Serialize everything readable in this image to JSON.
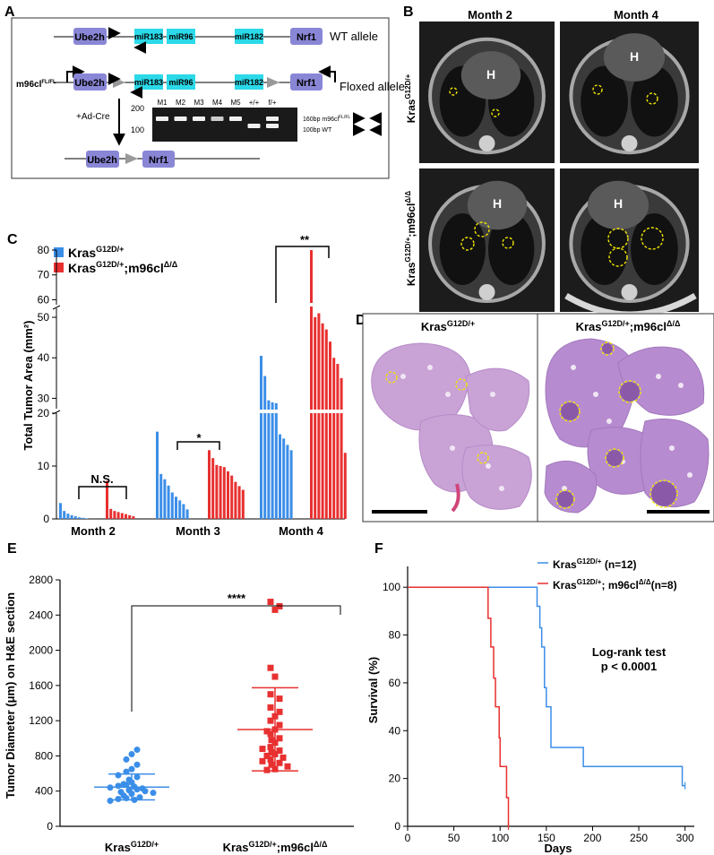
{
  "panelA": {
    "letter": "A",
    "wt_label": "WT allele",
    "floxed_label": "Floxed allele",
    "mouse_label": "m96cl",
    "mouse_sup": "FL/FL",
    "genes": {
      "ube2h": "Ube2h",
      "mir183": "miR183",
      "mir96": "miR96",
      "mir182": "miR182",
      "nrf1": "Nrf1",
      "loxp": "LoxP"
    },
    "cre_label": "+Ad-Cre",
    "gel_lanes": [
      "M1",
      "M2",
      "M3",
      "M4",
      "M5",
      "+/+",
      "f/+"
    ],
    "gel_ladder": [
      "200",
      "100"
    ],
    "gel_band_fl": "160bp m96cl",
    "gel_band_fl_sup": "FL/FL",
    "gel_band_wt": "100bp WT"
  },
  "panelB": {
    "letter": "B",
    "month2": "Month 2",
    "month4": "Month 4",
    "row1": "Kras",
    "row1_sup": "G12D/+",
    "row2": "Kras",
    "row2_sup": "G12D/+",
    "row2_tail": ";m96cl",
    "row2_tail_sup": "Δ/Δ",
    "heart": "H"
  },
  "panelC": {
    "letter": "C",
    "legend1": "Kras",
    "legend1_sup": "G12D/+",
    "legend2": "Kras",
    "legend2_sup": "G12D/+",
    "legend2_tail": ";m96cl",
    "legend2_tail_sup": "Δ/Δ",
    "ylabel": "Total Tumor Area (mm²)",
    "yticks_top": [
      "80",
      "70",
      "60"
    ],
    "yticks_mid": [
      "50",
      "40",
      "30"
    ],
    "yticks_low": [
      "20",
      "10",
      "0"
    ],
    "sig": [
      "N.S.",
      "*",
      "**"
    ],
    "xcats": [
      "Month 2",
      "Month 3",
      "Month 4"
    ],
    "colors": {
      "wt": "#3b8ee8",
      "ko": "#e83030"
    }
  },
  "panelD": {
    "letter": "D",
    "title1": "Kras",
    "title1_sup": "G12D/+",
    "title2": "Kras",
    "title2_sup": "G12D/+",
    "title2_tail": ";m96cl",
    "title2_tail_sup": "Δ/Δ"
  },
  "panelE": {
    "letter": "E",
    "ylabel": "Tumor Diameter (μm) on H&E section",
    "yticks": [
      "0",
      "400",
      "800",
      "1200",
      "1600",
      "2000",
      "2400",
      "2800"
    ],
    "cat1": "Kras",
    "cat1_sup": "G12D/+",
    "cat2": "Kras",
    "cat2_sup": "G12D/+",
    "cat2_tail": ";m96cl",
    "cat2_tail_sup": "Δ/Δ",
    "sig": "****"
  },
  "panelF": {
    "letter": "F",
    "ylabel": "Survival (%)",
    "xlabel": "Days",
    "yticks": [
      "0",
      "20",
      "40",
      "60",
      "80",
      "100"
    ],
    "xticks": [
      "0",
      "50",
      "100",
      "150",
      "200",
      "250",
      "300"
    ],
    "legend1": "Kras",
    "legend1_sup": "G12D/+",
    "legend1_tail": " (n=12)",
    "legend2": "Kras",
    "legend2_sup": "G12D/+",
    "legend2_tail": "; m96cl",
    "legend2_tail_sup": "Δ/Δ",
    "legend2_n": "(n=8)",
    "test": "Log-rank test",
    "pval": "p < 0.0001"
  },
  "chart_data": [
    {
      "type": "bar",
      "panel": "C",
      "ylabel": "Total Tumor Area (mm²)",
      "categories": [
        "Month 2",
        "Month 3",
        "Month 4"
      ],
      "series": [
        {
          "name": "KrasG12D/+",
          "color": "#3b8ee8",
          "values": [
            [
              3.0,
              1.5,
              1.0,
              0.7,
              0.5,
              0.3,
              0.2,
              0.1
            ],
            [
              16.5,
              8.5,
              7.5,
              6.3,
              5.0,
              4.2,
              3.5,
              2.8,
              1.8
            ],
            [
              40.5,
              35.5,
              29.5,
              29.0,
              28.8,
              16.0,
              15.2,
              14.0,
              13.0
            ]
          ]
        },
        {
          "name": "KrasG12D/+;m96clΔ/Δ",
          "color": "#e83030",
          "values": [
            [
              7.2,
              1.9,
              1.5,
              1.3,
              1.1,
              0.9,
              0.7,
              0.5
            ],
            [
              13.0,
              11.5,
              10.2,
              10.0,
              9.8,
              9.0,
              8.2,
              7.0,
              6.2,
              5.5
            ],
            [
              80.0,
              53.0,
              51.0,
              48.5,
              47.0,
              44.0,
              40.0,
              38.5,
              35.0,
              12.5
            ]
          ]
        }
      ],
      "significance": [
        "N.S.",
        "*",
        "**"
      ]
    },
    {
      "type": "scatter",
      "panel": "E",
      "ylabel": "Tumor Diameter (μm) on H&E section",
      "ylim": [
        0,
        2800
      ],
      "categories": [
        "KrasG12D/+",
        "KrasG12D/+;m96clΔ/Δ"
      ],
      "series": [
        {
          "name": "KrasG12D/+",
          "color": "#3b8ee8",
          "mean": 445,
          "sd_upper": 595,
          "sd_lower": 300,
          "values": [
            870,
            820,
            760,
            700,
            650,
            620,
            580,
            560,
            530,
            500,
            480,
            470,
            460,
            450,
            440,
            430,
            420,
            410,
            400,
            390,
            380,
            370,
            350,
            330,
            320,
            310,
            300,
            290
          ]
        },
        {
          "name": "KrasG12D/+;m96clΔ/Δ",
          "color": "#e83030",
          "mean": 1100,
          "sd_upper": 1575,
          "sd_lower": 630,
          "values": [
            2550,
            2500,
            2460,
            1800,
            1700,
            1500,
            1450,
            1350,
            1300,
            1250,
            1200,
            1150,
            1100,
            1080,
            1050,
            1000,
            980,
            950,
            900,
            880,
            860,
            840,
            820,
            800,
            780,
            760,
            740,
            720,
            700,
            680,
            650,
            640
          ]
        }
      ],
      "significance": "****"
    },
    {
      "type": "line",
      "panel": "F",
      "xlabel": "Days",
      "ylabel": "Survival (%)",
      "xlim": [
        0,
        310
      ],
      "ylim": [
        0,
        100
      ],
      "series": [
        {
          "name": "KrasG12D/+ (n=12)",
          "color": "#3b8ee8",
          "steps": [
            [
              0,
              100
            ],
            [
              140,
              100
            ],
            [
              140,
              92
            ],
            [
              143,
              83
            ],
            [
              145,
              75
            ],
            [
              148,
              58
            ],
            [
              150,
              50
            ],
            [
              155,
              33
            ],
            [
              190,
              25
            ],
            [
              297,
              17
            ],
            [
              300,
              17
            ]
          ]
        },
        {
          "name": "KrasG12D/+; m96clΔ/Δ (n=8)",
          "color": "#e83030",
          "steps": [
            [
              0,
              100
            ],
            [
              87,
              100
            ],
            [
              87,
              87
            ],
            [
              90,
              75
            ],
            [
              93,
              62
            ],
            [
              95,
              50
            ],
            [
              99,
              37
            ],
            [
              100,
              25
            ],
            [
              107,
              12
            ],
            [
              109,
              0
            ]
          ]
        }
      ],
      "annotation": [
        "Log-rank test",
        "p < 0.0001"
      ]
    }
  ]
}
